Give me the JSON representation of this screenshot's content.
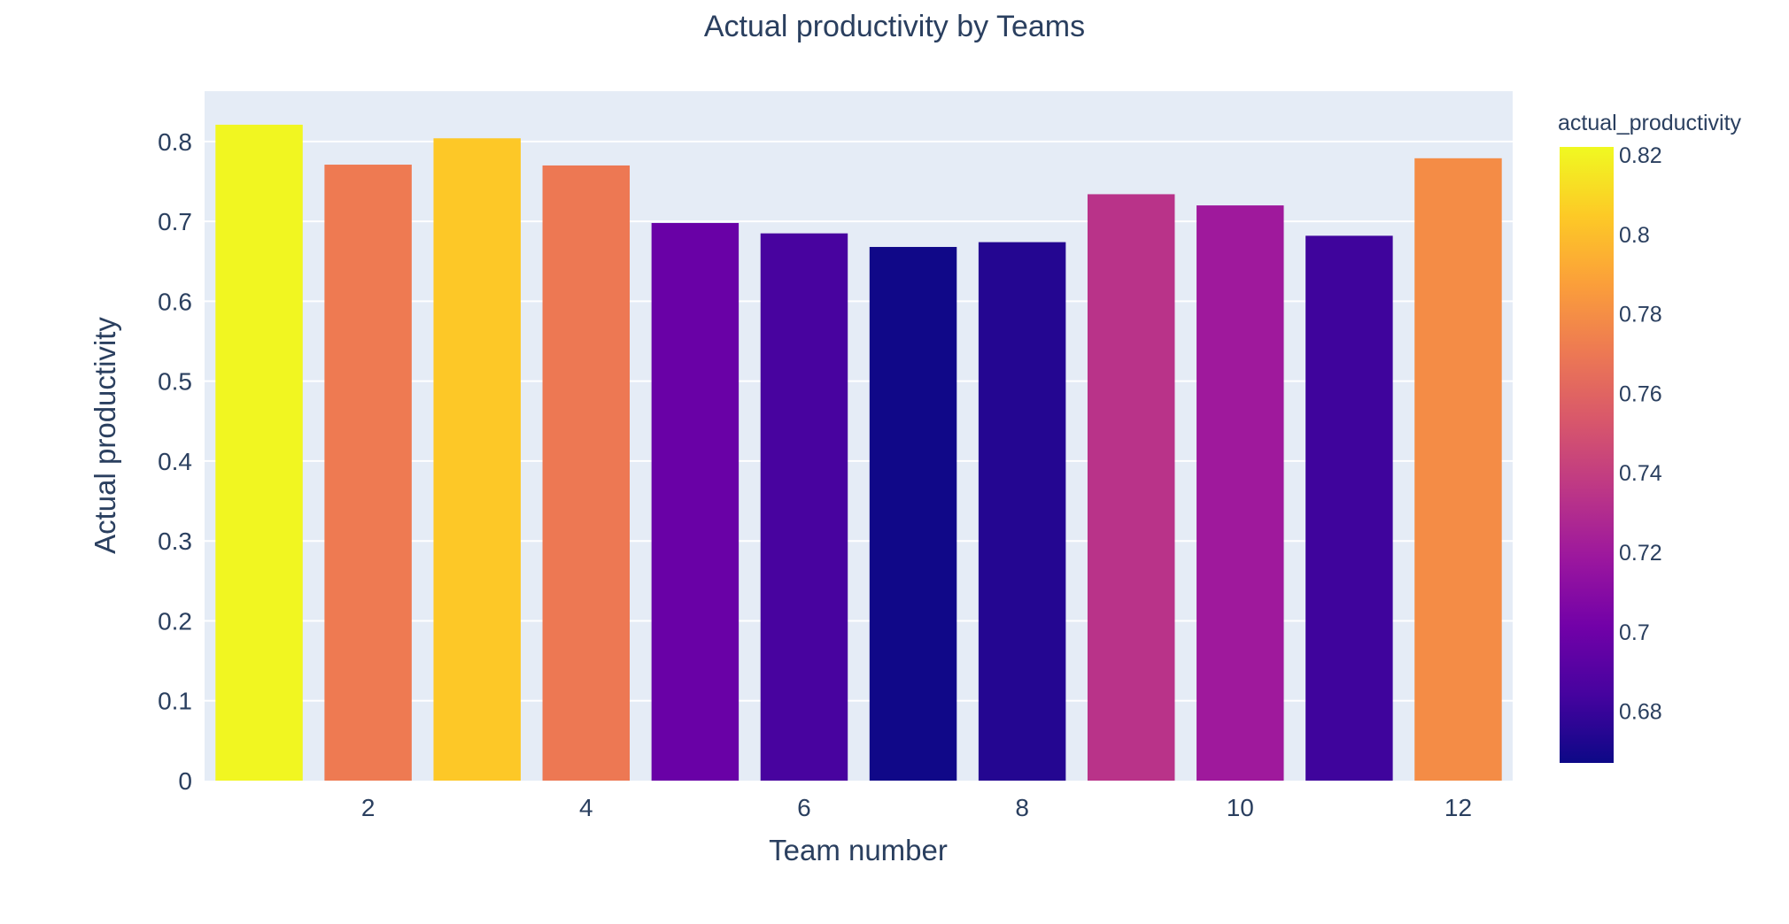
{
  "chart_data": {
    "type": "bar",
    "title": "Actual productivity by Teams",
    "xlabel": "Team number",
    "ylabel": "Actual productivity",
    "categories": [
      1,
      2,
      3,
      4,
      5,
      6,
      7,
      8,
      9,
      10,
      11,
      12
    ],
    "values": [
      0.821,
      0.771,
      0.804,
      0.77,
      0.698,
      0.685,
      0.668,
      0.674,
      0.734,
      0.72,
      0.682,
      0.779
    ],
    "ylim": [
      0,
      0.863
    ],
    "xlim": [
      0.5,
      12.5
    ],
    "x_ticks": [
      2,
      4,
      6,
      8,
      10,
      12
    ],
    "x_tick_labels": [
      "2",
      "4",
      "6",
      "8",
      "10",
      "12"
    ],
    "y_ticks": [
      0,
      0.1,
      0.2,
      0.3,
      0.4,
      0.5,
      0.6,
      0.7,
      0.8
    ],
    "y_tick_labels": [
      "0",
      "0.1",
      "0.2",
      "0.3",
      "0.4",
      "0.5",
      "0.6",
      "0.7",
      "0.8"
    ],
    "grid": true,
    "colorbar": {
      "title": "actual_productivity",
      "min": 0.667,
      "max": 0.822,
      "ticks": [
        0.68,
        0.7,
        0.72,
        0.74,
        0.76,
        0.78,
        0.8,
        0.82
      ],
      "tick_labels": [
        "0.68",
        "0.7",
        "0.72",
        "0.74",
        "0.76",
        "0.78",
        "0.8",
        "0.82"
      ],
      "colorscale": [
        "#0d0887",
        "#46039f",
        "#7201a8",
        "#9c179e",
        "#bd3786",
        "#d8576b",
        "#ed7953",
        "#fb9f3a",
        "#fdca26",
        "#f0f921"
      ]
    },
    "colors": {
      "plot_bg": "#e5ecf6",
      "grid": "#ffffff",
      "text": "#2a3f5f"
    }
  }
}
